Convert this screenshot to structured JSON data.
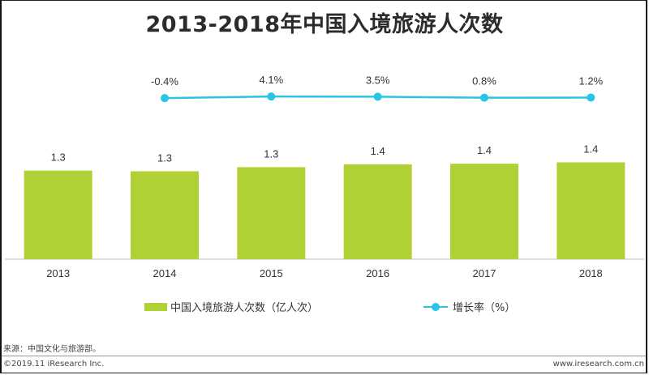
{
  "title": "2013-2018年中国入境旅游人次数",
  "legend": {
    "bar_label": "中国入境旅游人次数（亿人次）",
    "line_label": "增长率（%）"
  },
  "source": "来源：中国文化与旅游部。",
  "copyright": "©2019.11 iResearch Inc.",
  "website": "www.iresearch.com.cn",
  "colors": {
    "bar": "#afd135",
    "line": "#29c4e8"
  },
  "chart_data": {
    "type": "bar",
    "title": "2013-2018年中国入境旅游人次数",
    "categories": [
      "2013",
      "2014",
      "2015",
      "2016",
      "2017",
      "2018"
    ],
    "series": [
      {
        "name": "中国入境旅游人次数（亿人次）",
        "type": "bar",
        "values": [
          1.29,
          1.28,
          1.34,
          1.38,
          1.39,
          1.41
        ],
        "labels": [
          "1.3",
          "1.3",
          "1.3",
          "1.4",
          "1.4",
          "1.4"
        ]
      },
      {
        "name": "增长率（%）",
        "type": "line",
        "values": [
          null,
          -0.4,
          4.1,
          3.5,
          0.8,
          1.2
        ],
        "labels": [
          "",
          "-0.4%",
          "4.1%",
          "3.5%",
          "0.8%",
          "1.2%"
        ]
      }
    ],
    "legend_position": "bottom",
    "grid": false
  }
}
